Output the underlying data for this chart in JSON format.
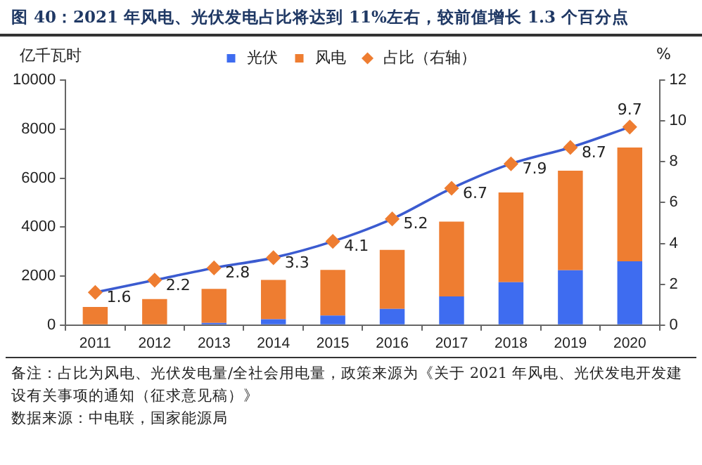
{
  "chart_data": {
    "type": "bar",
    "title": "图 40：2021 年风电、光伏发电占比将达到 11%左右，较前值增长 1.3 个百分点",
    "categories": [
      "2011",
      "2012",
      "2013",
      "2014",
      "2015",
      "2016",
      "2017",
      "2018",
      "2019",
      "2020"
    ],
    "series": [
      {
        "name": "光伏",
        "color": "#3e6cf0",
        "values": [
          0,
          0,
          90,
          240,
          390,
          660,
          1170,
          1750,
          2240,
          2600
        ]
      },
      {
        "name": "风电",
        "color": "#ee7d31",
        "values": [
          740,
          1060,
          1390,
          1600,
          1860,
          2410,
          3050,
          3660,
          4060,
          4650
        ]
      },
      {
        "name": "占比（右轴）",
        "type": "line",
        "axis": "y2",
        "color": "#3b5bd0",
        "colors": [
          "#ee7d31",
          "#ee7d31",
          "#ee7d31",
          "#ee7d31",
          "#ee7d31",
          "#ee7d31",
          "#ee7d31",
          "#ee7d31",
          "#ee7d31",
          "#ee7d31"
        ],
        "marker": "diamond",
        "values": [
          1.6,
          2.2,
          2.8,
          3.3,
          4.1,
          5.2,
          6.7,
          7.9,
          8.7,
          9.7
        ],
        "value_labels": [
          "1.6",
          "2.2",
          "2.8",
          "3.3",
          "4.1",
          "5.2",
          "6.7",
          "7.9",
          "8.7",
          "9.7"
        ]
      }
    ],
    "stacked": true,
    "ylabel": "亿千瓦时",
    "y2label": "%",
    "ylim": [
      0,
      10000
    ],
    "yticks": [
      0,
      2000,
      4000,
      6000,
      8000,
      10000
    ],
    "y2lim": [
      0,
      12
    ],
    "y2ticks": [
      0,
      2,
      4,
      6,
      8,
      10,
      12
    ],
    "grid": false,
    "legend": "top",
    "annotations": [
      "备注：占比为风电、光伏发电量/全社会用电量，政策来源为《关于 2021 年风电、光伏发电开发建设有关事项的通知（征求意见稿）》",
      "数据来源：中电联，国家能源局"
    ]
  }
}
